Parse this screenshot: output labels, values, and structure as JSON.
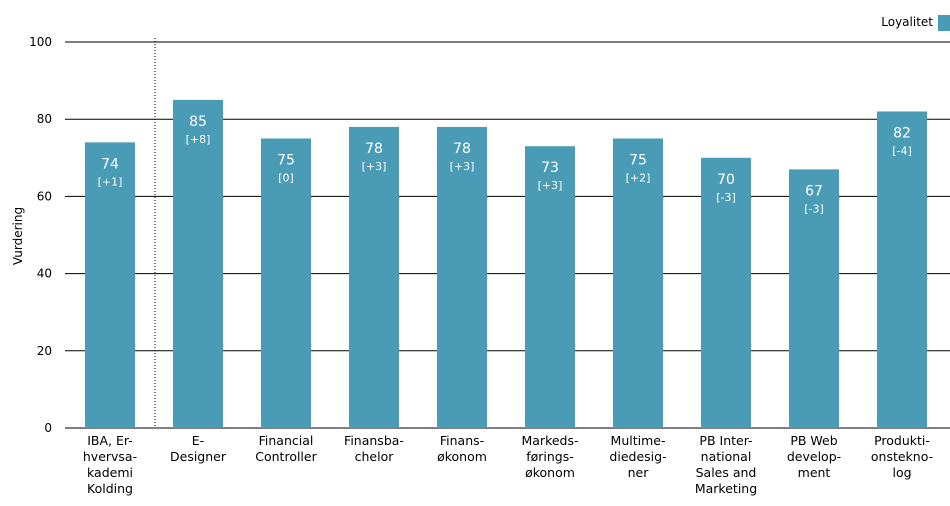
{
  "chart_data": {
    "type": "bar",
    "ylabel": "Vurdering",
    "ylim": [
      0,
      100
    ],
    "yticks": [
      "0",
      "20",
      "40",
      "60",
      "80",
      "100"
    ],
    "grid": true,
    "legend_position": "top-right",
    "series": [
      {
        "name": "Loyalitet",
        "color": "#4a9bb5",
        "values": [
          74,
          85,
          75,
          78,
          78,
          73,
          75,
          70,
          67,
          82
        ],
        "value_labels": [
          "74",
          "85",
          "75",
          "78",
          "78",
          "73",
          "75",
          "70",
          "67",
          "82"
        ],
        "change_labels": [
          "[+1]",
          "[+8]",
          "[0]",
          "[+3]",
          "[+3]",
          "[+3]",
          "[+2]",
          "[-3]",
          "[-3]",
          "[-4]"
        ]
      }
    ],
    "categories": [
      [
        "IBA, Er-",
        "hvervsa-",
        "kademi",
        "Kolding"
      ],
      [
        "E-",
        "Designer"
      ],
      [
        "Financial",
        "Controller"
      ],
      [
        "Finansba-",
        "chelor"
      ],
      [
        "Finans-",
        "økonom"
      ],
      [
        "Markeds-",
        "førings-",
        "økonom"
      ],
      [
        "Multime-",
        "diedesig-",
        "ner"
      ],
      [
        "PB Inter-",
        "national",
        "Sales and",
        "Marketing"
      ],
      [
        "PB Web",
        "develop-",
        "ment"
      ],
      [
        "Produkti-",
        "onstekno-",
        "log"
      ]
    ]
  }
}
